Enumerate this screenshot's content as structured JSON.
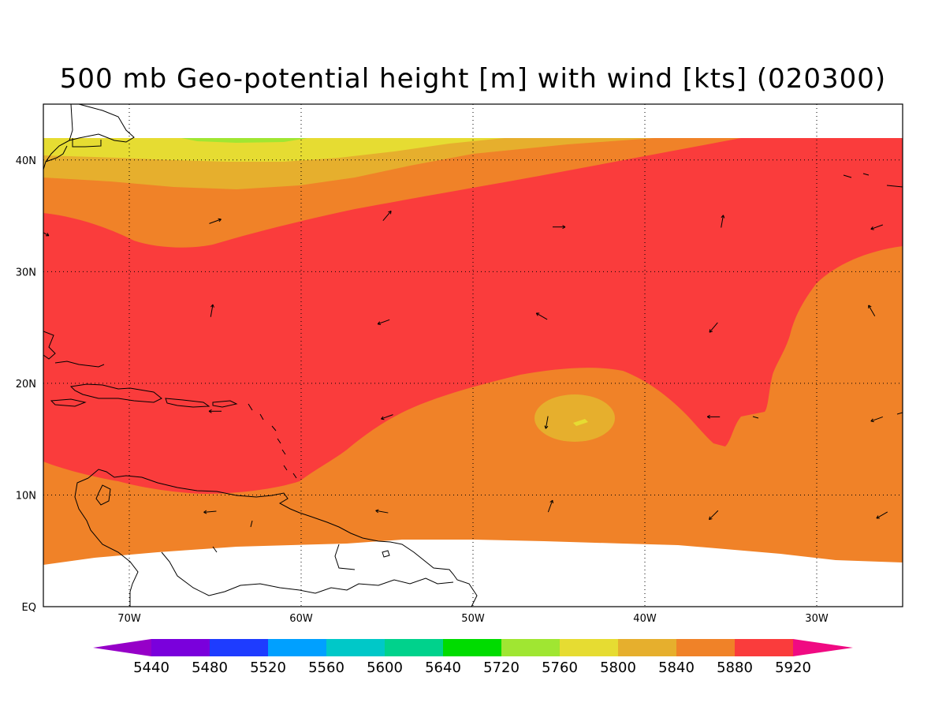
{
  "title": "500 mb Geo-potential height [m] with wind [kts] (020300)",
  "map": {
    "lon_range": [
      -75,
      -25
    ],
    "lat_range": [
      0,
      45
    ],
    "lon_labels": [
      "70W",
      "60W",
      "50W",
      "40W",
      "30W"
    ],
    "lat_labels": [
      "EQ",
      "10N",
      "20N",
      "30N",
      "40N"
    ]
  },
  "colorbar": {
    "levels": [
      "5440",
      "5480",
      "5520",
      "5560",
      "5600",
      "5640",
      "5720",
      "5760",
      "5800",
      "5840",
      "5880",
      "5920"
    ],
    "colors": [
      "#9600c8",
      "#7a00dc",
      "#1e3cff",
      "#00a0ff",
      "#00c8c8",
      "#00d28c",
      "#00dc00",
      "#a0e632",
      "#e6dc32",
      "#e6af2d",
      "#f08228",
      "#fa3c3c",
      "#f00a82"
    ]
  },
  "fields": {
    "colors": {
      "lime": "#a0e632",
      "yellow": "#e6dc32",
      "gold": "#e6af2d",
      "orange": "#f08228",
      "red": "#fa3c3c"
    }
  },
  "wind_vectors": [
    {
      "lon": -65,
      "lat": 34.5,
      "dir": 70
    },
    {
      "lon": -55,
      "lat": 35,
      "dir": 40
    },
    {
      "lon": -45,
      "lat": 34,
      "dir": 90
    },
    {
      "lon": -35.5,
      "lat": 34.5,
      "dir": 10
    },
    {
      "lon": -26.5,
      "lat": 34,
      "dir": 250
    },
    {
      "lon": -75,
      "lat": 33.5,
      "dir": 120
    },
    {
      "lon": -65.2,
      "lat": 26.5,
      "dir": 10
    },
    {
      "lon": -55.2,
      "lat": 25.5,
      "dir": 250
    },
    {
      "lon": -46,
      "lat": 26,
      "dir": 300
    },
    {
      "lon": -36,
      "lat": 25,
      "dir": 220
    },
    {
      "lon": -26.8,
      "lat": 26.5,
      "dir": 330
    },
    {
      "lon": -65,
      "lat": 17.5,
      "dir": 270
    },
    {
      "lon": -55,
      "lat": 17,
      "dir": 250
    },
    {
      "lon": -45.7,
      "lat": 16.5,
      "dir": 190
    },
    {
      "lon": -36,
      "lat": 17,
      "dir": 270
    },
    {
      "lon": -26.5,
      "lat": 16.8,
      "dir": 250
    },
    {
      "lon": -65.3,
      "lat": 8.5,
      "dir": 265
    },
    {
      "lon": -55.3,
      "lat": 8.5,
      "dir": 280
    },
    {
      "lon": -45.5,
      "lat": 9,
      "dir": 20
    },
    {
      "lon": -36,
      "lat": 8.2,
      "dir": 225
    },
    {
      "lon": -26.2,
      "lat": 8.2,
      "dir": 240
    }
  ]
}
